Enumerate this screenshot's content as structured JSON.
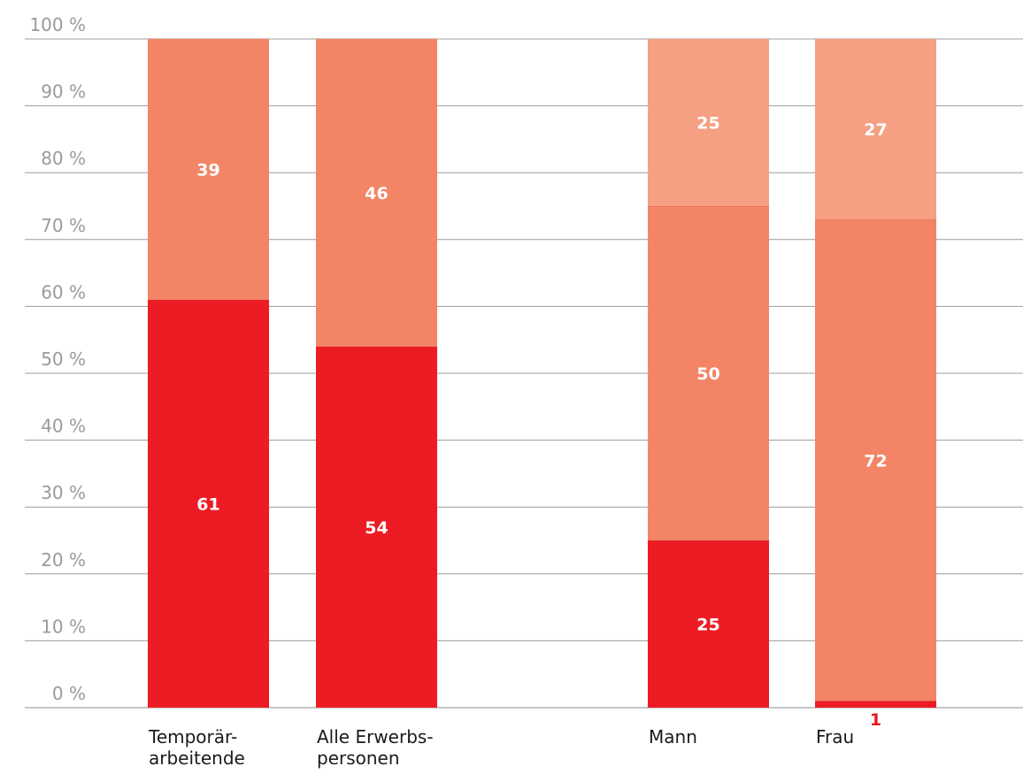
{
  "chart_data": {
    "type": "bar",
    "stacked": true,
    "percent_stacked": true,
    "ylim": [
      0,
      100
    ],
    "y_ticks": [
      0,
      10,
      20,
      30,
      40,
      50,
      60,
      70,
      80,
      90,
      100
    ],
    "y_tick_labels": [
      "0 %",
      "10 %",
      "20 %",
      "30 %",
      "40 %",
      "50 %",
      "60 %",
      "70 %",
      "80 %",
      "90 %",
      "100 %"
    ],
    "grid": true,
    "legend": null,
    "groups": [
      {
        "bars": [
          {
            "label_lines": [
              "Temporär-",
              "arbeitende"
            ],
            "segments": [
              61,
              39
            ]
          },
          {
            "label_lines": [
              "Alle Erwerbs-",
              "personen"
            ],
            "segments": [
              54,
              46
            ]
          }
        ]
      },
      {
        "bars": [
          {
            "label_lines": [
              "Mann"
            ],
            "segments": [
              25,
              50,
              25
            ]
          },
          {
            "label_lines": [
              "Frau"
            ],
            "segments": [
              1,
              72,
              27
            ]
          }
        ]
      }
    ],
    "segment_colors": {
      "group1": [
        "#ed1c24",
        "#f38566"
      ],
      "group2": [
        "#ed1c24",
        "#f38566",
        "#f59f83"
      ]
    }
  }
}
